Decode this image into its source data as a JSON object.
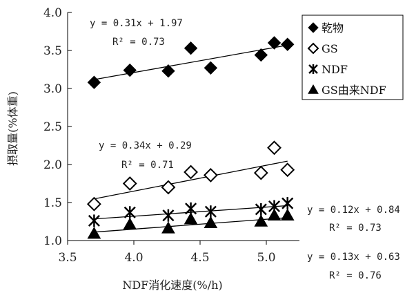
{
  "chart_data": {
    "type": "scatter",
    "xlabel": "NDF消化速度(%/h)",
    "ylabel": "摂取量(%体重)",
    "xlim": [
      3.5,
      5.25
    ],
    "ylim": [
      1.0,
      4.0
    ],
    "x_ticks": [
      "3.5",
      "4.0",
      "4.5",
      "5.0"
    ],
    "y_ticks": [
      "1.0",
      "1.5",
      "2.0",
      "2.5",
      "3.0",
      "3.5",
      "4.0"
    ],
    "legend_position": "top-right",
    "series": [
      {
        "name": "乾物",
        "marker": "diamond-filled",
        "x": [
          3.7,
          3.97,
          4.26,
          4.43,
          4.58,
          4.96,
          5.06,
          5.16
        ],
        "y": [
          3.08,
          3.24,
          3.23,
          3.53,
          3.27,
          3.44,
          3.6,
          3.58
        ],
        "trend": {
          "slope": 0.31,
          "intercept": 1.97,
          "equation": "y = 0.31x + 1.97",
          "r2": "R² = 0.73"
        }
      },
      {
        "name": "GS",
        "marker": "diamond-open",
        "x": [
          3.7,
          3.97,
          4.26,
          4.43,
          4.58,
          4.96,
          5.06,
          5.16
        ],
        "y": [
          1.48,
          1.75,
          1.7,
          1.9,
          1.86,
          1.89,
          2.22,
          1.93
        ],
        "trend": {
          "slope": 0.34,
          "intercept": 0.29,
          "equation": "y = 0.34x + 0.29",
          "r2": "R² = 0.71"
        }
      },
      {
        "name": "NDF",
        "marker": "asterisk",
        "x": [
          3.7,
          3.97,
          4.26,
          4.43,
          4.58,
          4.96,
          5.06,
          5.16
        ],
        "y": [
          1.26,
          1.37,
          1.33,
          1.42,
          1.38,
          1.41,
          1.45,
          1.49
        ],
        "trend": {
          "slope": 0.12,
          "intercept": 0.84,
          "equation": "y = 0.12x + 0.84",
          "r2": "R² = 0.73"
        }
      },
      {
        "name": "GS由来NDF",
        "marker": "triangle-filled",
        "x": [
          3.7,
          3.97,
          4.26,
          4.43,
          4.58,
          4.96,
          5.06,
          5.16
        ],
        "y": [
          1.09,
          1.21,
          1.16,
          1.28,
          1.23,
          1.25,
          1.33,
          1.33
        ],
        "trend": {
          "slope": 0.13,
          "intercept": 0.63,
          "equation": "y = 0.13x + 0.63",
          "r2": "R² = 0.76"
        }
      }
    ]
  }
}
